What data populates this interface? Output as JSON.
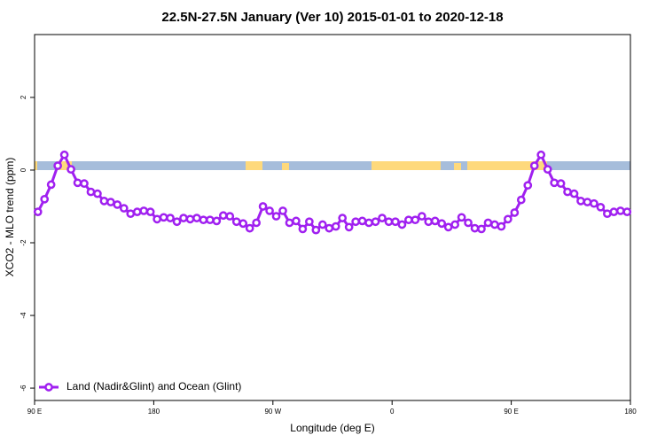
{
  "chart_data": {
    "type": "line",
    "title": "22.5N-27.5N January (Ver 10)   2015-01-01 to 2020-12-18",
    "x_label": "Longitude (deg E)",
    "y_label": "XCO2 - MLO trend (ppm)",
    "x": [
      92.5,
      97.5,
      102.5,
      107.5,
      112.5,
      117.5,
      122.5,
      127.5,
      132.5,
      137.5,
      142.5,
      147.5,
      152.5,
      157.5,
      162.5,
      167.5,
      172.5,
      177.5,
      182.5,
      187.5,
      192.5,
      197.5,
      202.5,
      207.5,
      212.5,
      217.5,
      222.5,
      227.5,
      232.5,
      237.5,
      242.5,
      247.5,
      252.5,
      257.5,
      262.5,
      267.5,
      272.5,
      277.5,
      282.5,
      287.5,
      292.5,
      297.5,
      302.5,
      307.5,
      312.5,
      317.5,
      322.5,
      327.5,
      332.5,
      337.5,
      342.5,
      347.5,
      352.5,
      357.5,
      362.5,
      367.5,
      372.5,
      377.5,
      382.5,
      387.5,
      392.5,
      397.5,
      402.5,
      407.5,
      412.5,
      417.5,
      422.5,
      427.5,
      432.5,
      437.5,
      442.5,
      447.5,
      452.5,
      457.5,
      462.5,
      467.5,
      472.5,
      477.5,
      482.5,
      487.5,
      492.5,
      497.5,
      502.5,
      507.5,
      512.5,
      517.5,
      522.5,
      527.5,
      532.5,
      537.5
    ],
    "series": [
      {
        "name": "Land (Nadir&Glint) and Ocean (Glint)",
        "color": "#a020f0",
        "values": [
          -1.15,
          -0.8,
          -0.4,
          0.12,
          0.42,
          0.02,
          -0.35,
          -0.37,
          -0.6,
          -0.65,
          -0.85,
          -0.88,
          -0.95,
          -1.05,
          -1.2,
          -1.15,
          -1.12,
          -1.15,
          -1.35,
          -1.3,
          -1.32,
          -1.42,
          -1.32,
          -1.35,
          -1.32,
          -1.37,
          -1.37,
          -1.4,
          -1.25,
          -1.27,
          -1.42,
          -1.47,
          -1.6,
          -1.45,
          -1.0,
          -1.12,
          -1.27,
          -1.12,
          -1.45,
          -1.4,
          -1.62,
          -1.42,
          -1.65,
          -1.5,
          -1.6,
          -1.55,
          -1.32,
          -1.57,
          -1.42,
          -1.4,
          -1.45,
          -1.42,
          -1.32,
          -1.42,
          -1.42,
          -1.5,
          -1.37,
          -1.37,
          -1.27,
          -1.42,
          -1.4,
          -1.47,
          -1.57,
          -1.5,
          -1.3,
          -1.45,
          -1.6,
          -1.62,
          -1.45,
          -1.5,
          -1.55,
          -1.35,
          -1.17,
          -0.82,
          -0.42,
          0.12,
          0.42,
          0.02,
          -0.35,
          -0.37,
          -0.6,
          -0.65,
          -0.85,
          -0.88,
          -0.92,
          -1.02,
          -1.2,
          -1.15,
          -1.12,
          -1.15
        ]
      }
    ],
    "xlim": [
      90,
      540
    ],
    "xticks": [
      {
        "value": 90,
        "label": "90 E"
      },
      180,
      {
        "value": 270,
        "label": "90 W"
      },
      {
        "value": 360,
        "label": "0"
      },
      {
        "value": 450,
        "label": "90 E"
      },
      {
        "value": 540,
        "label": "180"
      }
    ],
    "ylim": [
      -6.34,
      3.73
    ],
    "yticks": [
      -6,
      -4,
      -2,
      0,
      2
    ],
    "legend": "bottom-left"
  }
}
